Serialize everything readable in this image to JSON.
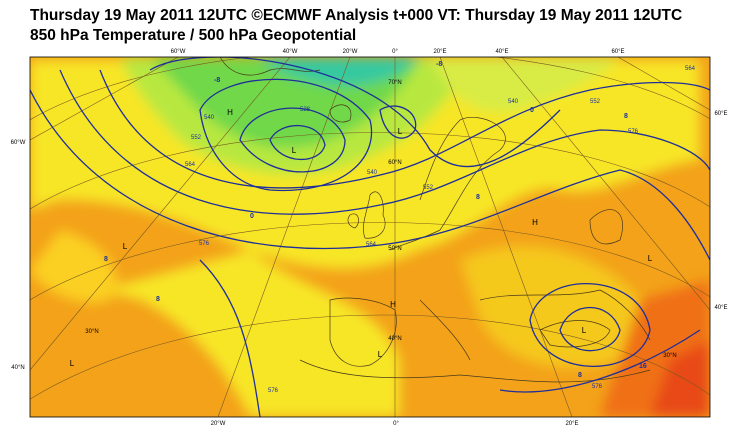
{
  "header": {
    "title": "Thursday 19 May 2011 12UTC ©ECMWF Analysis t+000 VT: Thursday 19 May 2011 12UTC",
    "subtitle": "850 hPa Temperature / 500 hPa Geopotential"
  },
  "map": {
    "longitude_labels_top": [
      "60°W",
      "40°W",
      "20°W",
      "0°",
      "20°E",
      "40°E",
      "60°E"
    ],
    "longitude_labels_bottom": [
      "20°W",
      "0°",
      "20°E"
    ],
    "latitude_labels_left": [
      "60°W",
      "40°N"
    ],
    "latitude_labels_right": [
      "60°E",
      "40°E"
    ],
    "latitude_labels_inner": [
      "70°N",
      "60°N",
      "50°N",
      "40°N",
      "30°N",
      "30°N"
    ],
    "pressure_centers": [
      "H",
      "L",
      "L",
      "H",
      "L",
      "H",
      "L",
      "L",
      "L",
      "L"
    ],
    "contour_labels": [
      "528",
      "540",
      "552",
      "564",
      "576",
      "540",
      "552",
      "564",
      "552",
      "564",
      "540",
      "576",
      "576",
      "576"
    ],
    "temperature_labels": [
      "-8",
      "8",
      "0",
      "8",
      "8",
      "0",
      "8",
      "8",
      "16",
      "-8"
    ]
  }
}
